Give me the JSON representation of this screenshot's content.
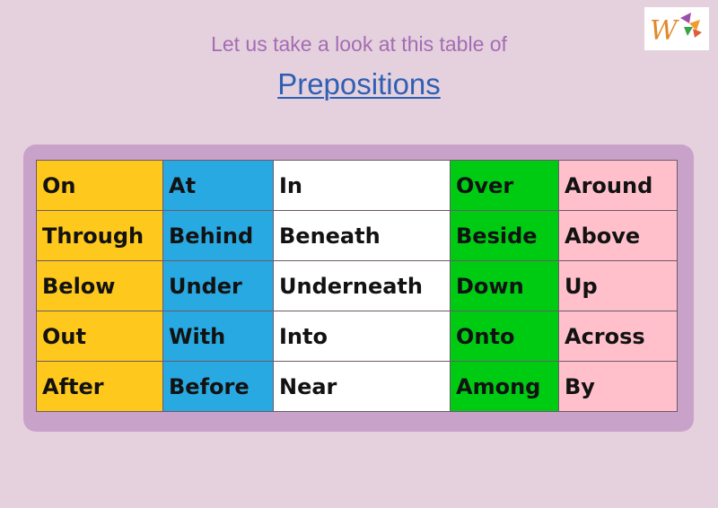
{
  "header": {
    "subtitle": "Let us take a look at this table of",
    "title": "Prepositions"
  },
  "logo": {
    "icon": "w-logo-icon"
  },
  "colors": {
    "background": "#e4d1dd",
    "panel": "#c9a2c9",
    "column_1": "#fec81c",
    "column_2": "#29a9e1",
    "column_3": "#ffffff",
    "column_4": "#00cb13",
    "column_5": "#ffc0cb",
    "title": "#2f5fb4",
    "subtitle": "#a46cb4"
  },
  "table": {
    "rows": [
      [
        "On",
        "At",
        "In",
        "Over",
        "Around"
      ],
      [
        "Through",
        "Behind",
        "Beneath",
        "Beside",
        "Above"
      ],
      [
        "Below",
        "Under",
        "Underneath",
        "Down",
        "Up"
      ],
      [
        "Out",
        "With",
        "Into",
        "Onto",
        "Across"
      ],
      [
        "After",
        "Before",
        "Near",
        "Among",
        "By"
      ]
    ]
  }
}
